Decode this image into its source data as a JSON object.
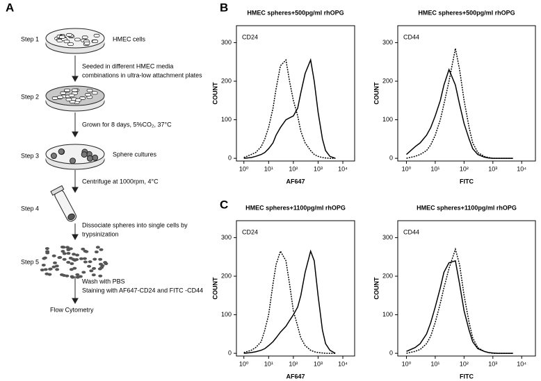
{
  "panel_a": {
    "label": "A",
    "steps": [
      "Step 1",
      "Step 2",
      "Step 3",
      "Step 4",
      "Step 5"
    ],
    "notes": {
      "cells": "HMEC cells",
      "seeded": [
        "Seeded  in different HMEC media",
        "combinations in ultra-low attachment plates"
      ],
      "grown": "Grown for 8 days, 5%CO₂, 37°C",
      "spheres": "Sphere cultures",
      "centrifuge": "Centrifuge at 1000rpm, 4°C",
      "dissociate": [
        "Dissociate spheres into single cells by",
        "trypsinization"
      ],
      "wash": [
        "Wash with PBS",
        "Staining with AF647-CD24 and FITC -CD44"
      ],
      "result": "Flow Cytometry"
    }
  },
  "panel_labels": [
    "B",
    "C"
  ],
  "chart_data": [
    {
      "type": "line",
      "title": "HMEC spheres+500pg/ml rhOPG",
      "annotation": "CD24",
      "annotation_color": "#e0201c",
      "xlabel": "AF647",
      "ylabel": "COUNT",
      "xscale": "log",
      "x": [
        1,
        2,
        3,
        5,
        7,
        10,
        15,
        20,
        30,
        50,
        70,
        100,
        150,
        200,
        300,
        500,
        700,
        1000,
        1500,
        2000,
        3000,
        5000
      ],
      "series": [
        {
          "color": "#000000",
          "style": "dotted",
          "values": [
            2,
            10,
            15,
            30,
            50,
            80,
            130,
            180,
            240,
            255,
            200,
            150,
            110,
            70,
            40,
            20,
            10,
            5,
            2,
            1,
            0,
            0
          ]
        },
        {
          "color": "#000000",
          "style": "solid",
          "values": [
            0,
            2,
            5,
            10,
            15,
            25,
            40,
            60,
            80,
            100,
            105,
            110,
            130,
            170,
            220,
            255,
            200,
            120,
            50,
            20,
            5,
            0
          ]
        }
      ],
      "xlim": [
        0.5,
        30000
      ],
      "ylim": [
        -7,
        344
      ],
      "xticks": [
        {
          "value": 1,
          "label": "10⁰"
        },
        {
          "value": 10,
          "label": "10¹"
        },
        {
          "value": 100,
          "label": "10²"
        },
        {
          "value": 1000,
          "label": "10³"
        },
        {
          "value": 10000,
          "label": "10⁴"
        }
      ],
      "yticks": [
        0,
        100,
        200,
        300
      ]
    },
    {
      "type": "line",
      "title": "HMEC spheres+500pg/ml rhOPG",
      "annotation": "CD44",
      "annotation_color": "#1f8a2e",
      "xlabel": "FITC",
      "ylabel": "COUNT",
      "xscale": "log",
      "x": [
        1,
        2,
        3,
        5,
        7,
        10,
        15,
        20,
        30,
        50,
        70,
        100,
        150,
        200,
        300,
        500,
        700,
        1000,
        1500,
        2000,
        3000,
        5000
      ],
      "series": [
        {
          "color": "#000000",
          "style": "solid",
          "values": [
            10,
            30,
            40,
            60,
            80,
            110,
            150,
            190,
            230,
            190,
            140,
            90,
            50,
            25,
            10,
            3,
            1,
            0,
            0,
            0,
            0,
            0
          ]
        },
        {
          "color": "#000000",
          "style": "dotted",
          "values": [
            0,
            5,
            10,
            20,
            35,
            60,
            100,
            140,
            200,
            285,
            230,
            150,
            80,
            40,
            15,
            5,
            2,
            0,
            0,
            0,
            0,
            0
          ]
        }
      ],
      "xlim": [
        0.5,
        30000
      ],
      "ylim": [
        -7,
        344
      ],
      "xticks": [
        {
          "value": 1,
          "label": "10⁰"
        },
        {
          "value": 10,
          "label": "10¹"
        },
        {
          "value": 100,
          "label": "10²"
        },
        {
          "value": 1000,
          "label": "10³"
        },
        {
          "value": 10000,
          "label": "10⁴"
        }
      ],
      "yticks": [
        0,
        100,
        200,
        300
      ]
    },
    {
      "type": "line",
      "title": "HMEC spheres+1100pg/ml rhOPG",
      "annotation": "CD24",
      "annotation_color": "#e0201c",
      "xlabel": "AF647",
      "ylabel": "COUNT",
      "xscale": "log",
      "x": [
        1,
        2,
        3,
        5,
        7,
        10,
        15,
        20,
        30,
        50,
        70,
        100,
        150,
        200,
        300,
        500,
        700,
        1000,
        1500,
        2000,
        3000,
        5000
      ],
      "series": [
        {
          "color": "#000000",
          "style": "dotted",
          "values": [
            2,
            8,
            15,
            30,
            60,
            100,
            180,
            230,
            265,
            240,
            180,
            110,
            70,
            40,
            20,
            8,
            4,
            2,
            1,
            0,
            0,
            0
          ]
        },
        {
          "color": "#000000",
          "style": "solid",
          "values": [
            0,
            2,
            4,
            8,
            12,
            20,
            30,
            40,
            55,
            70,
            85,
            100,
            120,
            150,
            210,
            265,
            240,
            150,
            60,
            25,
            8,
            0
          ]
        }
      ],
      "xlim": [
        0.5,
        30000
      ],
      "ylim": [
        -7,
        344
      ],
      "xticks": [
        {
          "value": 1,
          "label": "10⁰"
        },
        {
          "value": 10,
          "label": "10¹"
        },
        {
          "value": 100,
          "label": "10²"
        },
        {
          "value": 1000,
          "label": "10³"
        },
        {
          "value": 10000,
          "label": "10⁴"
        }
      ],
      "yticks": [
        0,
        100,
        200,
        300
      ]
    },
    {
      "type": "line",
      "title": "HMEC spheres+1100pg/ml rhOPG",
      "annotation": "CD44",
      "annotation_color": "#1f8a2e",
      "xlabel": "FITC",
      "ylabel": "COUNT",
      "xscale": "log",
      "x": [
        1,
        2,
        3,
        5,
        7,
        10,
        15,
        20,
        30,
        50,
        70,
        100,
        150,
        200,
        300,
        500,
        700,
        1000,
        1500,
        2000,
        3000,
        5000
      ],
      "series": [
        {
          "color": "#000000",
          "style": "solid",
          "values": [
            5,
            15,
            25,
            50,
            80,
            120,
            170,
            210,
            235,
            240,
            180,
            110,
            60,
            30,
            12,
            5,
            2,
            1,
            0,
            0,
            0,
            0
          ]
        },
        {
          "color": "#000000",
          "style": "dotted",
          "values": [
            0,
            5,
            10,
            25,
            45,
            80,
            130,
            170,
            220,
            270,
            230,
            150,
            80,
            40,
            15,
            5,
            2,
            0,
            0,
            0,
            0,
            0
          ]
        }
      ],
      "xlim": [
        0.5,
        30000
      ],
      "ylim": [
        -7,
        344
      ],
      "xticks": [
        {
          "value": 1,
          "label": "10⁰"
        },
        {
          "value": 10,
          "label": "10¹"
        },
        {
          "value": 100,
          "label": "10²"
        },
        {
          "value": 1000,
          "label": "10³"
        },
        {
          "value": 10000,
          "label": "10⁴"
        }
      ],
      "yticks": [
        0,
        100,
        200,
        300
      ]
    }
  ]
}
